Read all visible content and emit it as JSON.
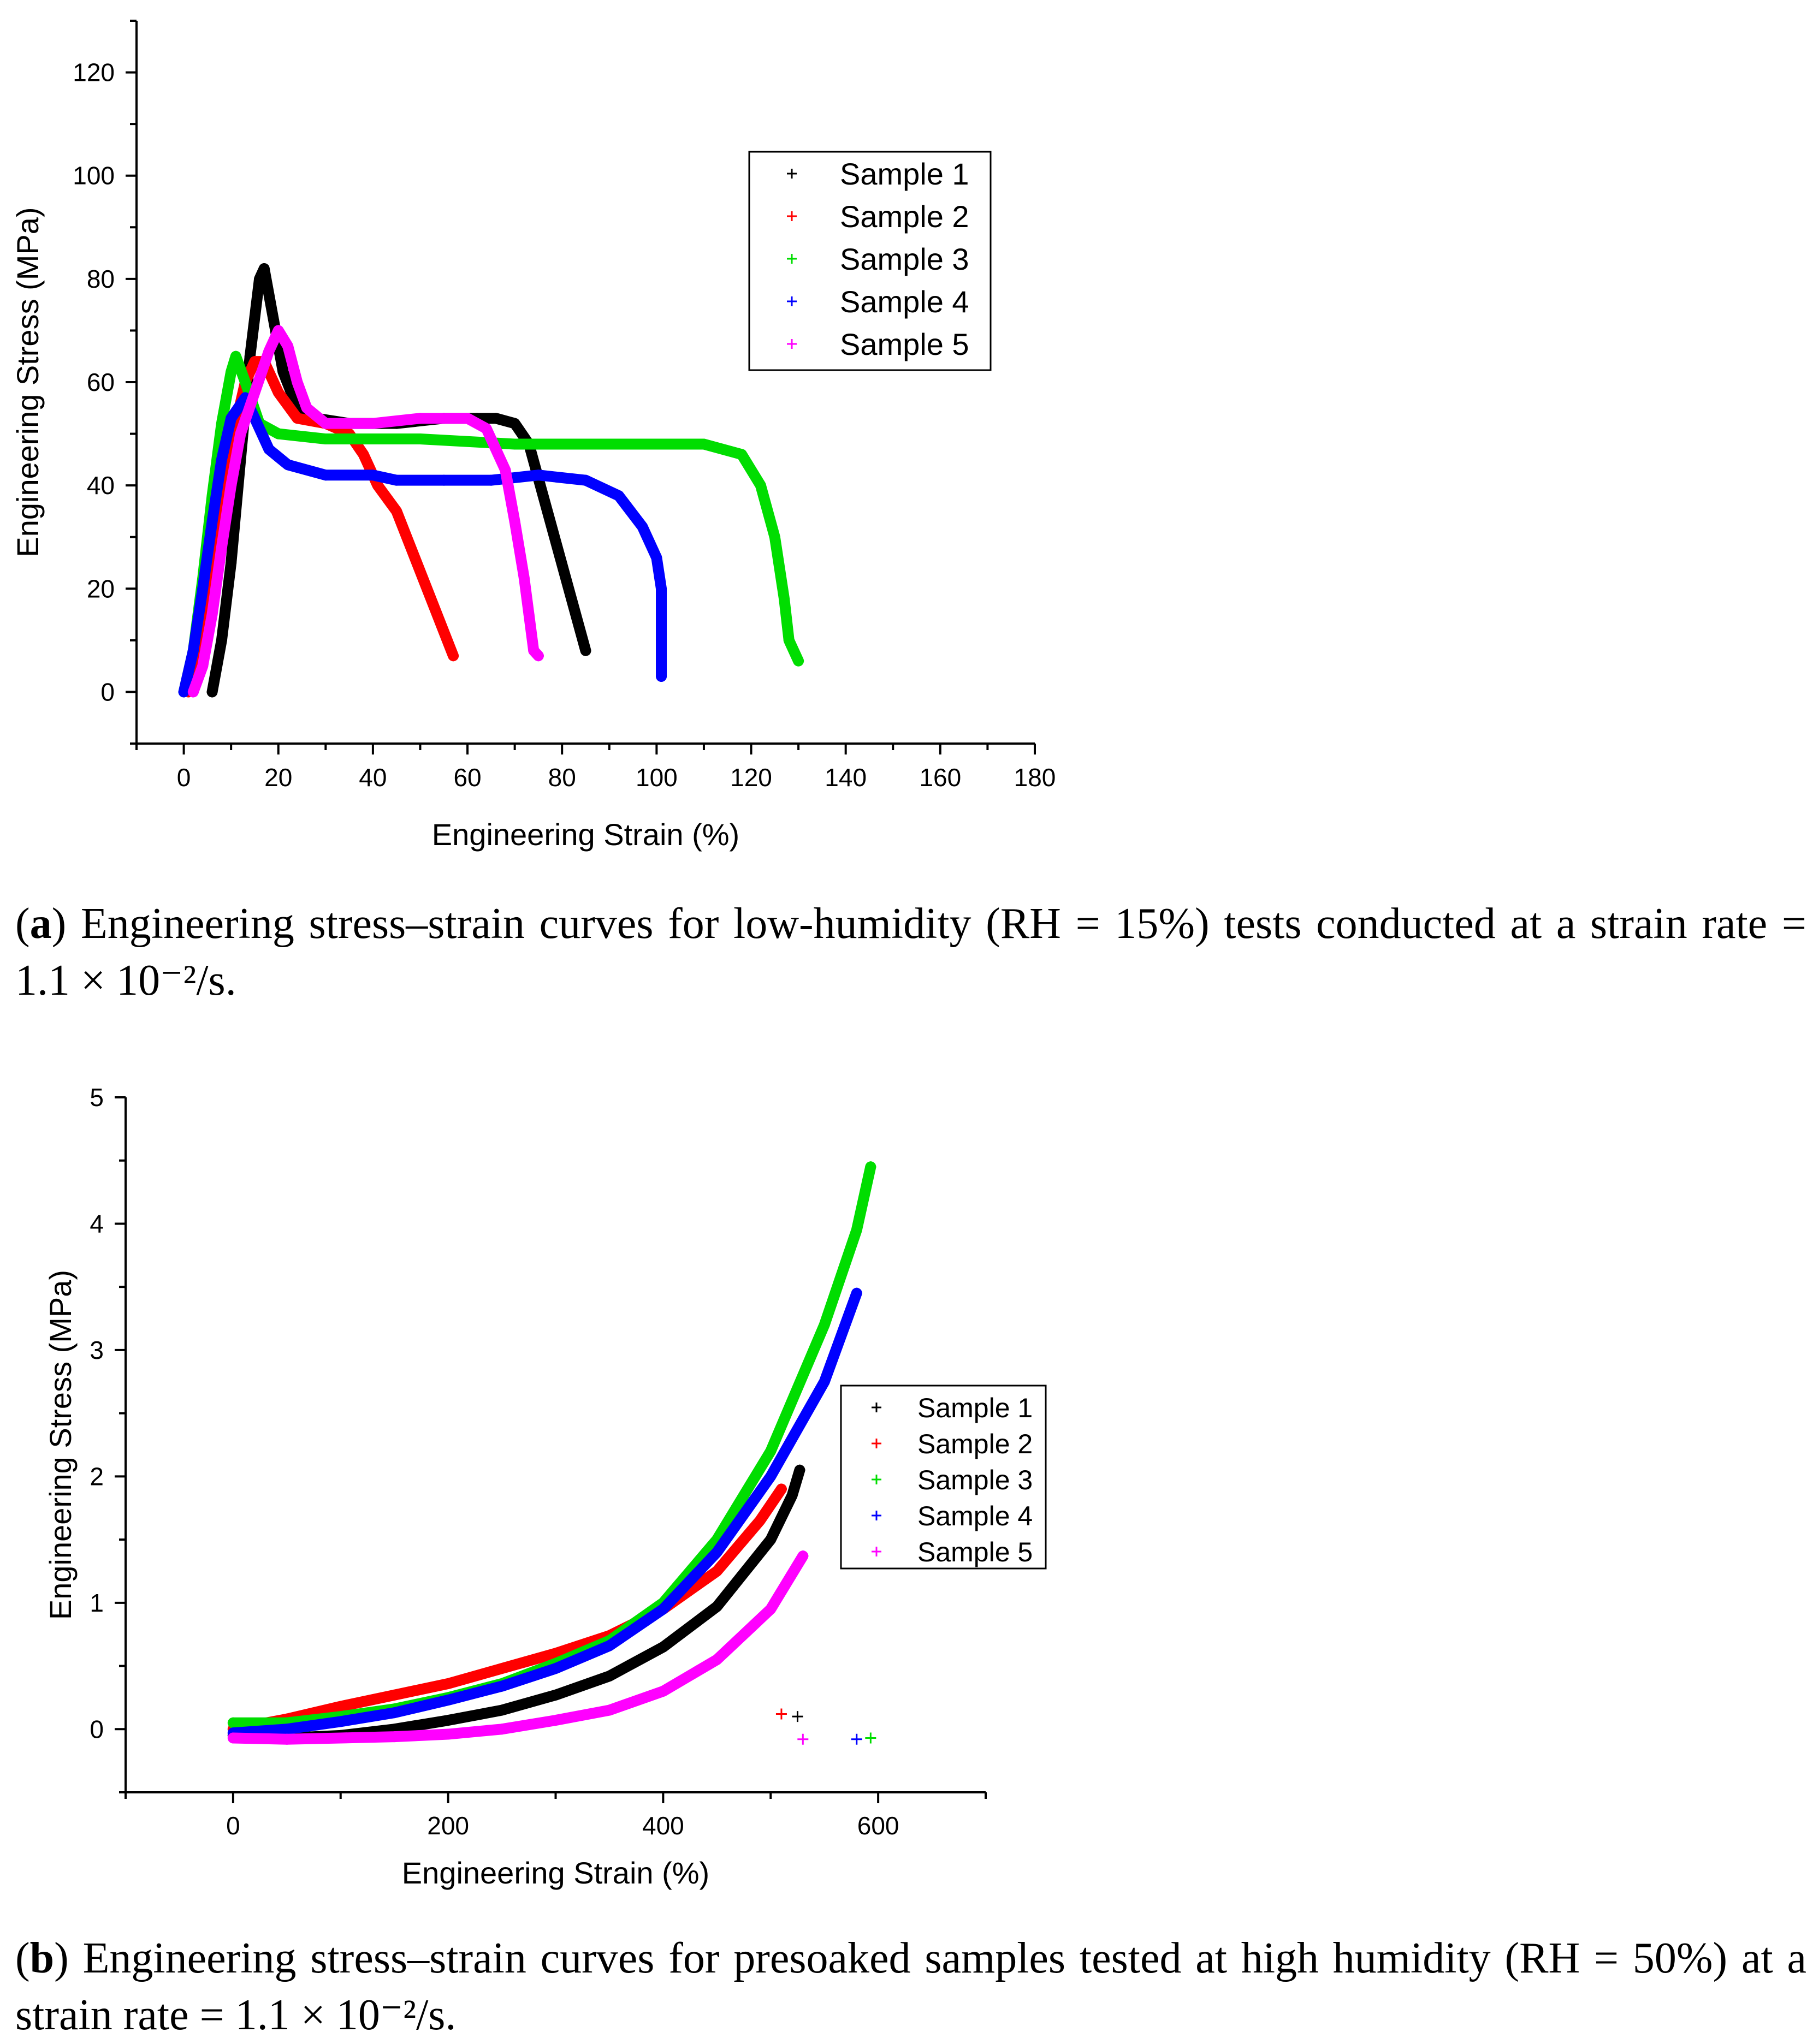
{
  "chart_data": [
    {
      "type": "scatter",
      "id": "a",
      "xlabel": "Engineering Strain (%)",
      "ylabel": "Engineering Stress (MPa)",
      "xlim": [
        -10,
        180
      ],
      "ylim": [
        -10,
        130
      ],
      "xticks": [
        0,
        20,
        40,
        60,
        80,
        100,
        120,
        140,
        160,
        180
      ],
      "yticks": [
        0,
        20,
        40,
        60,
        80,
        100,
        120
      ],
      "legend_position": "top-right",
      "series": [
        {
          "name": "Sample 1",
          "color": "#000000",
          "points": [
            [
              6,
              0
            ],
            [
              8,
              10
            ],
            [
              10,
              25
            ],
            [
              12,
              45
            ],
            [
              14,
              65
            ],
            [
              16,
              80
            ],
            [
              17,
              82
            ],
            [
              19,
              72
            ],
            [
              21,
              62
            ],
            [
              24,
              55
            ],
            [
              28,
              53
            ],
            [
              35,
              52
            ],
            [
              45,
              52
            ],
            [
              55,
              53
            ],
            [
              62,
              53
            ],
            [
              66,
              53
            ],
            [
              70,
              52
            ],
            [
              73,
              48
            ],
            [
              76,
              38
            ],
            [
              79,
              28
            ],
            [
              82,
              18
            ],
            [
              85,
              8
            ]
          ]
        },
        {
          "name": "Sample 2",
          "color": "#ff0000",
          "points": [
            [
              1,
              0
            ],
            [
              3,
              5
            ],
            [
              5,
              15
            ],
            [
              7,
              28
            ],
            [
              9,
              40
            ],
            [
              11,
              52
            ],
            [
              13,
              60
            ],
            [
              15,
              64
            ],
            [
              17,
              64
            ],
            [
              20,
              58
            ],
            [
              24,
              53
            ],
            [
              30,
              52
            ],
            [
              35,
              50
            ],
            [
              38,
              46
            ],
            [
              41,
              40
            ],
            [
              45,
              35
            ],
            [
              48,
              28
            ],
            [
              51,
              21
            ],
            [
              54,
              14
            ],
            [
              57,
              7
            ]
          ]
        },
        {
          "name": "Sample 3",
          "color": "#00dd00",
          "points": [
            [
              0,
              0
            ],
            [
              2,
              8
            ],
            [
              4,
              22
            ],
            [
              6,
              38
            ],
            [
              8,
              52
            ],
            [
              10,
              62
            ],
            [
              11,
              65
            ],
            [
              13,
              60
            ],
            [
              16,
              52
            ],
            [
              20,
              50
            ],
            [
              30,
              49
            ],
            [
              50,
              49
            ],
            [
              70,
              48
            ],
            [
              90,
              48
            ],
            [
              100,
              48
            ],
            [
              110,
              48
            ],
            [
              118,
              46
            ],
            [
              122,
              40
            ],
            [
              125,
              30
            ],
            [
              127,
              18
            ],
            [
              128,
              10
            ],
            [
              130,
              6
            ]
          ]
        },
        {
          "name": "Sample 4",
          "color": "#0000ff",
          "points": [
            [
              0,
              0
            ],
            [
              2,
              8
            ],
            [
              4,
              20
            ],
            [
              6,
              33
            ],
            [
              8,
              45
            ],
            [
              10,
              53
            ],
            [
              13,
              57
            ],
            [
              15,
              53
            ],
            [
              18,
              47
            ],
            [
              22,
              44
            ],
            [
              30,
              42
            ],
            [
              40,
              42
            ],
            [
              45,
              41
            ],
            [
              55,
              41
            ],
            [
              65,
              41
            ],
            [
              75,
              42
            ],
            [
              85,
              41
            ],
            [
              92,
              38
            ],
            [
              97,
              32
            ],
            [
              100,
              26
            ],
            [
              101,
              20
            ],
            [
              101,
              15
            ],
            [
              101,
              10
            ],
            [
              101,
              3
            ]
          ]
        },
        {
          "name": "Sample 5",
          "color": "#ff00ff",
          "points": [
            [
              2,
              0
            ],
            [
              4,
              5
            ],
            [
              6,
              15
            ],
            [
              8,
              28
            ],
            [
              10,
              40
            ],
            [
              12,
              50
            ],
            [
              15,
              58
            ],
            [
              18,
              66
            ],
            [
              20,
              70
            ],
            [
              22,
              67
            ],
            [
              24,
              60
            ],
            [
              26,
              55
            ],
            [
              30,
              52
            ],
            [
              40,
              52
            ],
            [
              50,
              53
            ],
            [
              60,
              53
            ],
            [
              64,
              51
            ],
            [
              68,
              43
            ],
            [
              70,
              33
            ],
            [
              72,
              22
            ],
            [
              73,
              15
            ],
            [
              74,
              8
            ],
            [
              75,
              7
            ]
          ]
        }
      ]
    },
    {
      "type": "scatter",
      "id": "b",
      "xlabel": "Engineering Strain (%)",
      "ylabel": "Engineering Stress (MPa)",
      "xlim": [
        -100,
        700
      ],
      "ylim": [
        -0.5,
        5
      ],
      "xticks": [
        0,
        200,
        400,
        600
      ],
      "yticks": [
        0,
        1,
        2,
        3,
        4,
        5
      ],
      "legend_position": "center-right",
      "series": [
        {
          "name": "Sample 1",
          "color": "#000000",
          "points": [
            [
              0,
              -0.05
            ],
            [
              50,
              -0.07
            ],
            [
              100,
              -0.05
            ],
            [
              150,
              0
            ],
            [
              200,
              0.07
            ],
            [
              250,
              0.15
            ],
            [
              300,
              0.27
            ],
            [
              350,
              0.42
            ],
            [
              400,
              0.65
            ],
            [
              450,
              0.97
            ],
            [
              500,
              1.5
            ],
            [
              520,
              1.85
            ],
            [
              527,
              2.05
            ]
          ],
          "outliers": [
            [
              525,
              0.1
            ]
          ]
        },
        {
          "name": "Sample 2",
          "color": "#ff0000",
          "points": [
            [
              0,
              0
            ],
            [
              50,
              0.08
            ],
            [
              100,
              0.18
            ],
            [
              150,
              0.27
            ],
            [
              200,
              0.36
            ],
            [
              250,
              0.48
            ],
            [
              300,
              0.6
            ],
            [
              350,
              0.74
            ],
            [
              400,
              0.95
            ],
            [
              450,
              1.25
            ],
            [
              490,
              1.65
            ],
            [
              510,
              1.9
            ]
          ],
          "outliers": [
            [
              510,
              0.12
            ]
          ]
        },
        {
          "name": "Sample 3",
          "color": "#00dd00",
          "points": [
            [
              0,
              0.05
            ],
            [
              50,
              0.05
            ],
            [
              100,
              0.1
            ],
            [
              150,
              0.16
            ],
            [
              200,
              0.25
            ],
            [
              250,
              0.36
            ],
            [
              300,
              0.52
            ],
            [
              350,
              0.7
            ],
            [
              400,
              1.0
            ],
            [
              450,
              1.5
            ],
            [
              500,
              2.2
            ],
            [
              550,
              3.2
            ],
            [
              580,
              3.95
            ],
            [
              593,
              4.45
            ]
          ],
          "outliers": [
            [
              593,
              -0.07
            ]
          ]
        },
        {
          "name": "Sample 4",
          "color": "#0000ff",
          "points": [
            [
              0,
              -0.03
            ],
            [
              50,
              0.0
            ],
            [
              100,
              0.06
            ],
            [
              150,
              0.13
            ],
            [
              200,
              0.23
            ],
            [
              250,
              0.34
            ],
            [
              300,
              0.48
            ],
            [
              350,
              0.66
            ],
            [
              400,
              0.95
            ],
            [
              450,
              1.4
            ],
            [
              500,
              2.0
            ],
            [
              550,
              2.75
            ],
            [
              580,
              3.45
            ]
          ],
          "outliers": [
            [
              580,
              -0.08
            ]
          ]
        },
        {
          "name": "Sample 5",
          "color": "#ff00ff",
          "points": [
            [
              0,
              -0.07
            ],
            [
              50,
              -0.08
            ],
            [
              100,
              -0.07
            ],
            [
              150,
              -0.06
            ],
            [
              200,
              -0.04
            ],
            [
              250,
              0.0
            ],
            [
              300,
              0.07
            ],
            [
              350,
              0.15
            ],
            [
              400,
              0.3
            ],
            [
              450,
              0.55
            ],
            [
              500,
              0.95
            ],
            [
              530,
              1.37
            ]
          ],
          "outliers": [
            [
              530,
              -0.08
            ]
          ]
        }
      ]
    }
  ],
  "captions": {
    "a_label": "a",
    "a_text": ") Engineering stress–strain curves for low-humidity (RH = 15%) tests conducted at a strain rate = 1.1 × 10⁻²/s.",
    "b_label": "b",
    "b_text": ") Engineering stress–strain curves for presoaked samples tested at high humidity (RH = 50%) at a strain rate = 1.1 × 10⁻²/s."
  }
}
